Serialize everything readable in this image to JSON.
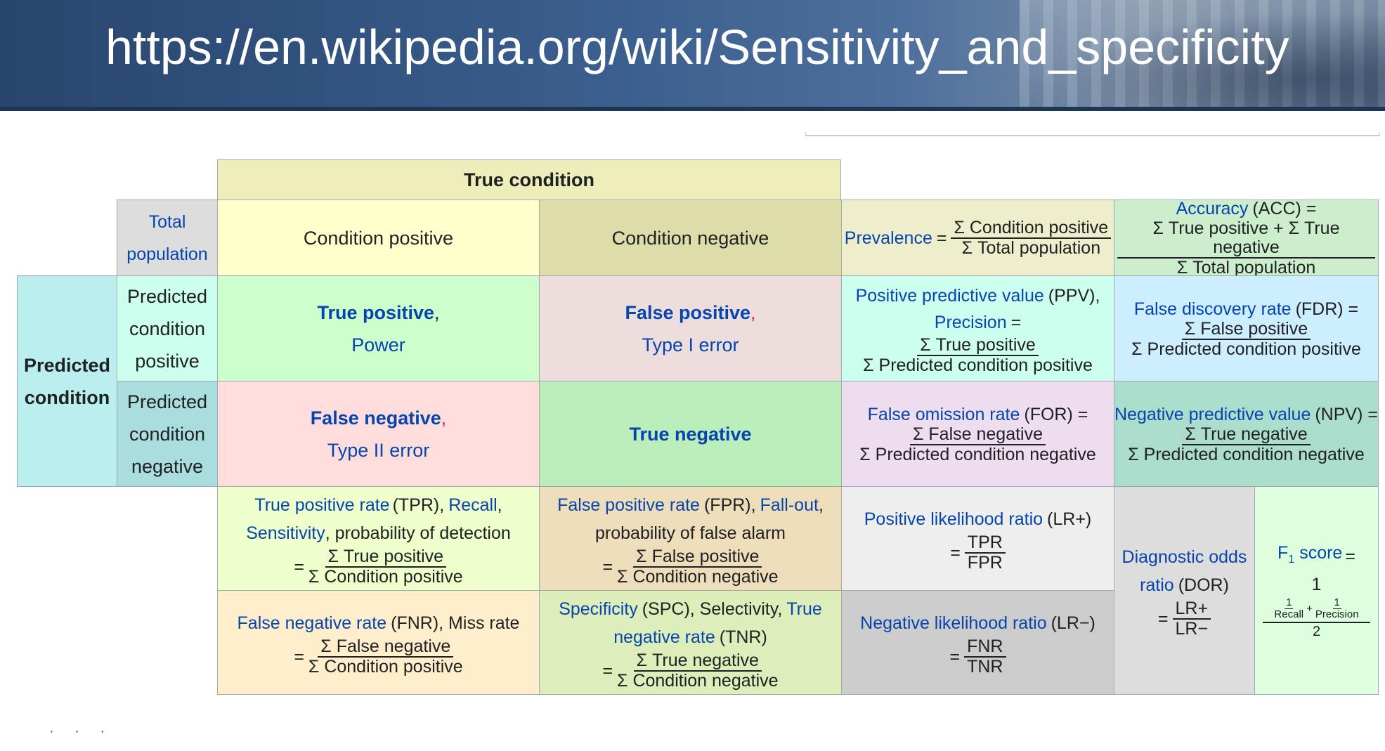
{
  "banner": {
    "url": "https://en.wikipedia.org/wiki/Sensitivity_and_specificity"
  },
  "table": {
    "true_condition": "True condition",
    "total_population": [
      "Total",
      "population"
    ],
    "condition_positive": "Condition positive",
    "condition_negative": "Condition negative",
    "predicted_condition": [
      "Predicted",
      "condition"
    ],
    "predicted_condition_positive": [
      "Predicted",
      "condition",
      "positive"
    ],
    "predicted_condition_negative": [
      "Predicted",
      "condition",
      "negative"
    ],
    "true_positive": {
      "term": "True positive",
      "comma": ",",
      "alt": "Power"
    },
    "false_positive": {
      "term": "False positive",
      "comma": ",",
      "alt": "Type I error"
    },
    "false_negative": {
      "term": "False negative",
      "comma": ",",
      "alt": "Type II error"
    },
    "true_negative": {
      "term": "True negative"
    },
    "prevalence": {
      "term": "Prevalence",
      "eq": "=",
      "num": "Σ Condition positive",
      "den": "Σ Total population"
    },
    "accuracy": {
      "term": "Accuracy",
      "abbr": "(ACC) =",
      "num": "Σ True positive + Σ True negative",
      "den": "Σ Total population"
    },
    "ppv": {
      "term": "Positive predictive value",
      "abbr": "(PPV),",
      "term2": "Precision",
      "eq": "=",
      "num": "Σ True positive",
      "den": "Σ Predicted condition positive"
    },
    "fdr": {
      "term": "False discovery rate",
      "abbr": "(FDR) =",
      "num": "Σ False positive",
      "den": "Σ Predicted condition positive"
    },
    "for": {
      "term": "False omission rate",
      "abbr": "(FOR) =",
      "num": "Σ False negative",
      "den": "Σ Predicted condition negative"
    },
    "npv": {
      "term": "Negative predictive value",
      "abbr": "(NPV) =",
      "num": "Σ True negative",
      "den": "Σ Predicted condition negative"
    },
    "tpr": {
      "term": "True positive rate",
      "abbr": "(TPR),",
      "term2": "Recall",
      "comma": ",",
      "term3": "Sensitivity",
      "rest": ", probability of detection",
      "eq": "=",
      "num": "Σ True positive",
      "den": "Σ Condition positive"
    },
    "fpr": {
      "term": "False positive rate",
      "abbr": "(FPR),",
      "term2": "Fall-out",
      "comma": ",",
      "rest": "probability of false alarm",
      "eq": "=",
      "num": "Σ False positive",
      "den": "Σ Condition negative"
    },
    "fnr": {
      "term": "False negative rate",
      "abbr": "(FNR), Miss rate",
      "eq": "=",
      "num": "Σ False negative",
      "den": "Σ Condition positive"
    },
    "tnr": {
      "term": "Specificity",
      "abbr": "(SPC), Selectivity,",
      "term2": "True",
      "term3": "negative rate",
      "abbr2": "(TNR)",
      "eq": "=",
      "num": "Σ True negative",
      "den": "Σ Condition negative"
    },
    "lr_pos": {
      "term": "Positive likelihood ratio",
      "abbr": "(LR+)",
      "eq": "=",
      "num": "TPR",
      "den": "FPR"
    },
    "lr_neg": {
      "term": "Negative likelihood ratio",
      "abbr": "(LR−)",
      "eq": "=",
      "num": "FNR",
      "den": "TNR"
    },
    "dor": {
      "term": "Diagnostic odds",
      "term2": "ratio",
      "abbr": "(DOR)",
      "eq": "=",
      "num": "LR+",
      "den": "LR−"
    },
    "f1": {
      "term": "F",
      "sub": "1",
      "term2": "score",
      "eq": "=",
      "num": "1",
      "inner_num1": "1",
      "inner_den1": "Recall",
      "plus": "+",
      "inner_num2": "1",
      "inner_den2": "Precision",
      "den": "2"
    }
  },
  "colors": {
    "yellow_light": "#f8f9c8",
    "yellow_header": "#eeeebb",
    "khaki": "#ddddaa",
    "cyan_light": "#aaeedd",
    "teal": "#bbeeee",
    "green": "#ccffcc",
    "green_mid": "#bbeebb",
    "pink": "#eedddd",
    "pink_red": "#ffdddd",
    "cyan": "#ccffee",
    "lightblue": "#cceeff",
    "lavender": "#eeddee",
    "teal_dark": "#aaddcc",
    "lime": "#eeffcc",
    "tan": "#eeddbb",
    "peach": "#ffeecc",
    "lime2": "#ddeebb",
    "grey1": "#eeeeee",
    "grey2": "#cccccc",
    "grey3": "#dddddd",
    "f1green": "#ddffdd"
  }
}
